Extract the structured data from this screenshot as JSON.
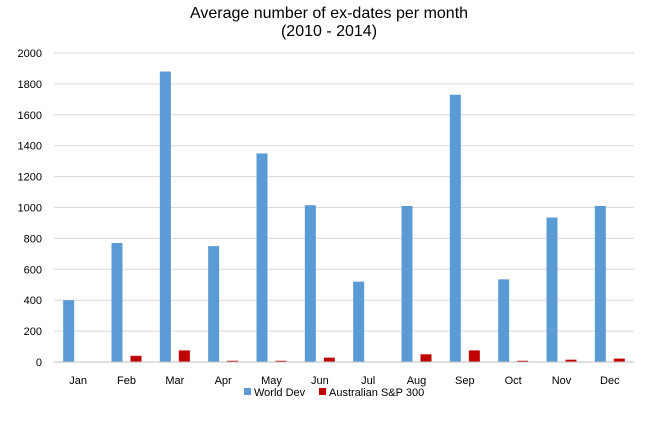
{
  "chart_data": {
    "type": "bar",
    "title": "Average number of ex-dates per month",
    "subtitle": "(2010 - 2014)",
    "xlabel": "",
    "ylabel": "",
    "categories": [
      "Jan",
      "Feb",
      "Mar",
      "Apr",
      "May",
      "Jun",
      "Jul",
      "Aug",
      "Sep",
      "Oct",
      "Nov",
      "Dec"
    ],
    "y_ticks": [
      "0",
      "200",
      "400",
      "600",
      "800",
      "1000",
      "1200",
      "1400",
      "1600",
      "1800",
      "2000"
    ],
    "ylim": [
      0,
      2000
    ],
    "grid": true,
    "legend_position": "bottom",
    "series": [
      {
        "name": "World Dev",
        "color": "#5b9bd5",
        "values": [
          400,
          770,
          1880,
          750,
          1350,
          1015,
          520,
          1010,
          1730,
          535,
          935,
          1010
        ]
      },
      {
        "name": "Australian S&P 300",
        "color": "#c00000",
        "values": [
          0,
          40,
          75,
          8,
          8,
          28,
          0,
          50,
          75,
          8,
          15,
          22
        ]
      }
    ]
  }
}
